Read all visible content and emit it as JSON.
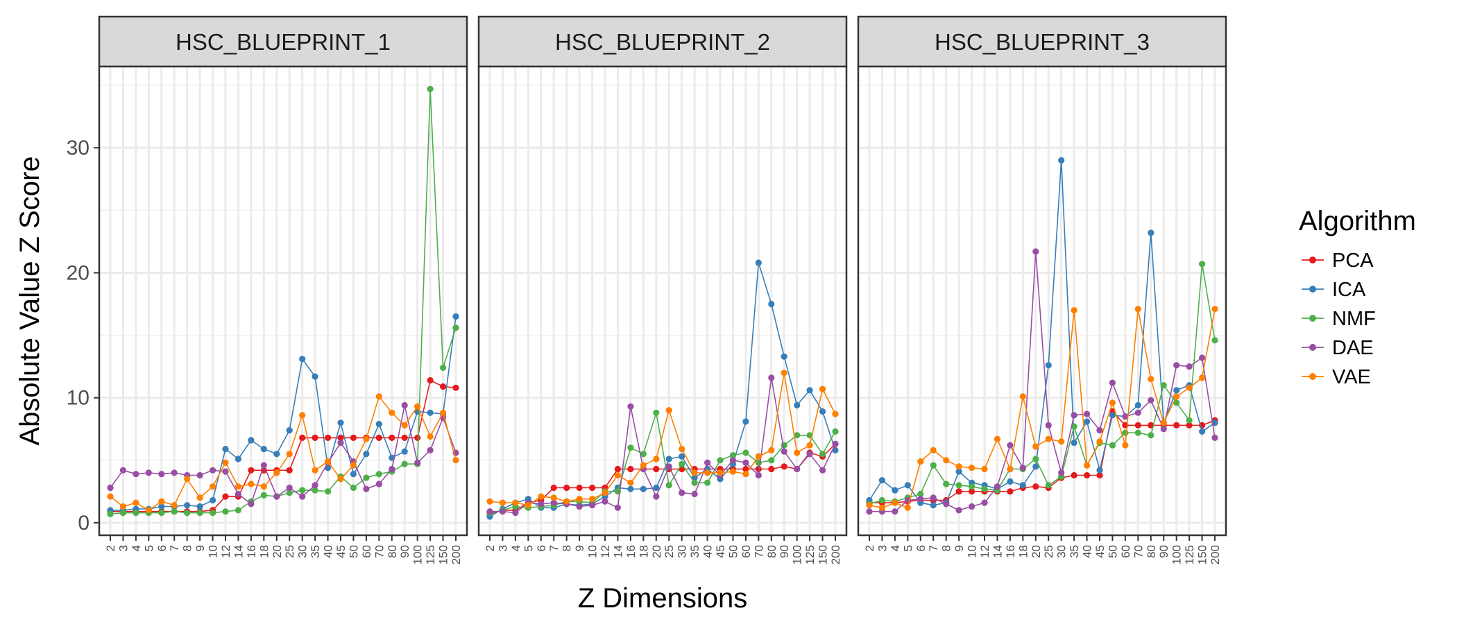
{
  "chart_data": {
    "type": "line",
    "ylabel": "Absolute Value Z Score",
    "xlabel": "Z Dimensions",
    "ylim": [
      -1,
      36.5
    ],
    "yticks": [
      0,
      10,
      20,
      30
    ],
    "categories": [
      "2",
      "3",
      "4",
      "5",
      "6",
      "7",
      "8",
      "9",
      "10",
      "12",
      "14",
      "16",
      "18",
      "20",
      "25",
      "30",
      "35",
      "40",
      "45",
      "50",
      "60",
      "70",
      "80",
      "90",
      "100",
      "125",
      "150",
      "200"
    ],
    "legend_title": "Algorithm",
    "legend_position": "right",
    "colors": {
      "PCA": "#e41a1c",
      "ICA": "#377eb8",
      "NMF": "#4daf4a",
      "DAE": "#984ea3",
      "VAE": "#ff7f00"
    },
    "panels": [
      {
        "title": "HSC_BLUEPRINT_1",
        "series": [
          {
            "name": "PCA",
            "values": [
              0.9,
              0.9,
              0.9,
              0.9,
              0.9,
              0.9,
              0.9,
              0.9,
              1.0,
              2.1,
              2.1,
              4.2,
              4.2,
              4.2,
              4.2,
              6.8,
              6.8,
              6.8,
              6.8,
              6.8,
              6.8,
              6.8,
              6.8,
              6.8,
              6.8,
              11.4,
              10.9,
              10.8
            ]
          },
          {
            "name": "ICA",
            "values": [
              1.0,
              1.0,
              1.1,
              1.1,
              1.3,
              1.3,
              1.4,
              1.3,
              1.8,
              5.9,
              5.1,
              6.6,
              5.9,
              5.5,
              7.4,
              13.1,
              11.7,
              4.4,
              8.0,
              3.9,
              5.5,
              7.9,
              5.2,
              5.7,
              8.9,
              8.8,
              8.7,
              16.5
            ]
          },
          {
            "name": "NMF",
            "values": [
              0.7,
              0.8,
              0.8,
              0.8,
              0.8,
              0.9,
              0.8,
              0.8,
              0.8,
              0.9,
              1.0,
              1.7,
              2.2,
              2.1,
              2.4,
              2.6,
              2.6,
              2.5,
              3.7,
              2.8,
              3.6,
              3.9,
              4.1,
              4.7,
              4.7,
              34.7,
              12.4,
              15.6
            ]
          },
          {
            "name": "DAE",
            "values": [
              2.8,
              4.2,
              3.9,
              4.0,
              3.9,
              4.0,
              3.8,
              3.8,
              4.2,
              4.1,
              2.3,
              1.5,
              4.6,
              2.1,
              2.8,
              2.1,
              3.0,
              4.8,
              6.4,
              4.9,
              2.7,
              3.1,
              4.3,
              9.4,
              4.8,
              5.8,
              8.4,
              5.6
            ]
          },
          {
            "name": "VAE",
            "values": [
              2.1,
              1.3,
              1.6,
              1.0,
              1.7,
              1.4,
              3.5,
              2.0,
              2.9,
              4.8,
              2.9,
              3.1,
              2.9,
              4.0,
              5.5,
              8.6,
              4.2,
              4.9,
              3.5,
              4.6,
              6.7,
              10.1,
              8.8,
              7.8,
              9.3,
              6.9,
              8.8,
              5.0
            ]
          }
        ]
      },
      {
        "title": "HSC_BLUEPRINT_2",
        "series": [
          {
            "name": "PCA",
            "values": [
              0.7,
              1.0,
              1.0,
              1.6,
              1.8,
              2.8,
              2.8,
              2.8,
              2.8,
              2.8,
              4.3,
              4.3,
              4.3,
              4.3,
              4.3,
              4.3,
              4.3,
              4.3,
              4.3,
              4.3,
              4.3,
              4.3,
              4.3,
              4.5,
              4.3,
              5.6,
              5.3,
              6.3
            ]
          },
          {
            "name": "ICA",
            "values": [
              0.5,
              1.1,
              1.6,
              1.9,
              1.2,
              1.2,
              1.5,
              1.4,
              1.5,
              2.1,
              2.8,
              2.7,
              2.7,
              2.8,
              5.1,
              5.3,
              3.6,
              4.3,
              3.5,
              4.7,
              8.1,
              20.8,
              17.5,
              13.3,
              9.4,
              10.6,
              8.9,
              5.8
            ]
          },
          {
            "name": "NMF",
            "values": [
              0.8,
              1.0,
              1.3,
              1.2,
              1.3,
              1.4,
              1.7,
              1.7,
              1.6,
              2.5,
              2.5,
              6.0,
              5.5,
              8.8,
              3.0,
              4.7,
              3.2,
              3.2,
              5.0,
              5.4,
              5.6,
              4.8,
              5.0,
              6.2,
              7.0,
              7.0,
              5.5,
              7.3
            ]
          },
          {
            "name": "DAE",
            "values": [
              0.9,
              0.9,
              0.8,
              1.6,
              1.5,
              1.6,
              1.5,
              1.3,
              1.4,
              1.7,
              1.2,
              9.3,
              4.3,
              2.1,
              4.5,
              2.4,
              2.3,
              4.8,
              3.8,
              5.0,
              4.8,
              3.8,
              11.6,
              5.7,
              4.3,
              5.5,
              4.2,
              6.3
            ]
          },
          {
            "name": "VAE",
            "values": [
              1.7,
              1.6,
              1.6,
              1.4,
              2.1,
              2.0,
              1.7,
              1.9,
              1.9,
              2.4,
              3.8,
              3.2,
              4.6,
              5.1,
              9.0,
              5.9,
              4.0,
              4.0,
              4.0,
              4.1,
              3.9,
              5.3,
              5.8,
              12.0,
              5.6,
              6.2,
              10.7,
              8.7
            ]
          }
        ]
      },
      {
        "title": "HSC_BLUEPRINT_3",
        "series": [
          {
            "name": "PCA",
            "values": [
              1.6,
              1.6,
              1.6,
              1.7,
              1.8,
              1.8,
              1.8,
              2.5,
              2.5,
              2.5,
              2.5,
              2.5,
              2.8,
              2.9,
              2.8,
              3.6,
              3.8,
              3.8,
              3.8,
              8.9,
              7.8,
              7.8,
              7.8,
              7.8,
              7.8,
              7.8,
              7.8,
              8.2
            ]
          },
          {
            "name": "ICA",
            "values": [
              1.8,
              3.4,
              2.6,
              3.0,
              1.6,
              1.4,
              1.6,
              4.1,
              3.2,
              3.0,
              2.7,
              3.3,
              3.0,
              4.5,
              12.6,
              29.0,
              6.4,
              8.1,
              4.2,
              8.6,
              8.5,
              9.4,
              23.2,
              8.0,
              10.6,
              11.0,
              7.3,
              8.0
            ]
          },
          {
            "name": "NMF",
            "values": [
              1.5,
              1.8,
              1.7,
              2.0,
              2.3,
              4.6,
              3.1,
              3.0,
              2.9,
              2.7,
              2.6,
              4.3,
              4.3,
              5.1,
              3.0,
              3.7,
              7.7,
              4.6,
              6.4,
              6.2,
              7.2,
              7.2,
              7.0,
              11.0,
              9.6,
              8.2,
              20.7,
              14.6
            ]
          },
          {
            "name": "DAE",
            "values": [
              0.9,
              0.9,
              0.9,
              1.8,
              1.9,
              2.0,
              1.5,
              1.0,
              1.3,
              1.6,
              2.9,
              6.2,
              4.4,
              21.7,
              7.8,
              4.0,
              8.6,
              8.7,
              7.4,
              11.2,
              8.5,
              8.8,
              9.8,
              7.5,
              12.6,
              12.5,
              13.2,
              6.8
            ]
          },
          {
            "name": "VAE",
            "values": [
              1.4,
              1.2,
              1.6,
              1.2,
              4.9,
              5.8,
              5.0,
              4.5,
              4.4,
              4.3,
              6.7,
              4.3,
              10.1,
              6.1,
              6.7,
              6.5,
              17.0,
              4.6,
              6.5,
              9.6,
              6.2,
              17.1,
              11.5,
              8.0,
              10.1,
              10.8,
              11.6,
              17.1
            ]
          }
        ]
      }
    ]
  }
}
